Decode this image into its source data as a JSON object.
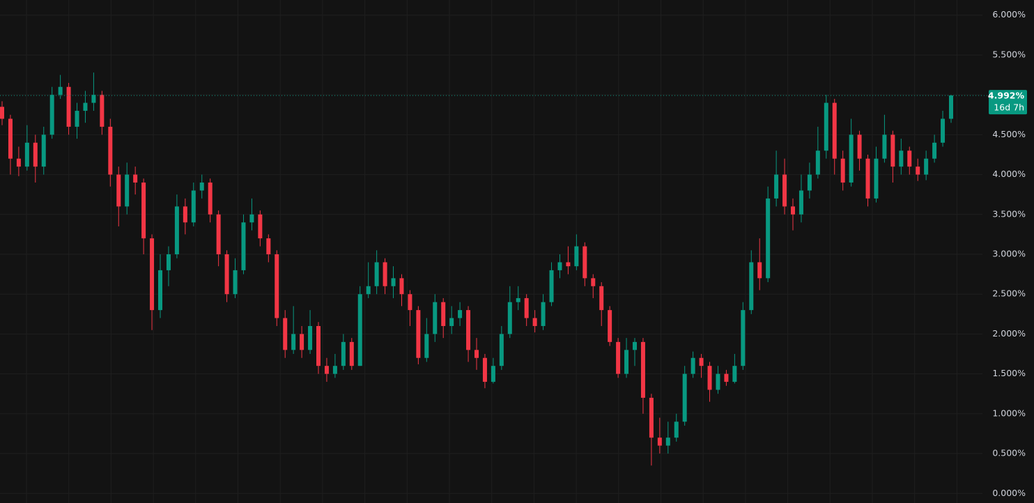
{
  "chart_data": {
    "type": "candlestick",
    "up_color": "#089981",
    "down_color": "#f23645",
    "grid": true,
    "ylim": [
      -0.12,
      6.19
    ],
    "yticks": [
      {
        "value": 0,
        "label": "0.000%"
      },
      {
        "value": 0.5,
        "label": "0.500%"
      },
      {
        "value": 1,
        "label": "1.000%"
      },
      {
        "value": 1.5,
        "label": "1.500%"
      },
      {
        "value": 2,
        "label": "2.000%"
      },
      {
        "value": 2.5,
        "label": "2.500%"
      },
      {
        "value": 3,
        "label": "3.000%"
      },
      {
        "value": 3.5,
        "label": "3.500%"
      },
      {
        "value": 4,
        "label": "4.000%"
      },
      {
        "value": 4.5,
        "label": "4.500%"
      },
      {
        "value": 5,
        "label": "5.000%"
      },
      {
        "value": 5.5,
        "label": "5.500%"
      },
      {
        "value": 6,
        "label": "6.000%"
      }
    ],
    "last_price": {
      "value": 4.992,
      "label": "4.992%"
    },
    "countdown": "16d 7h",
    "open": [
      4.85,
      4.7,
      4.2,
      4.1,
      4.4,
      4.1,
      4.5,
      5.0,
      5.1,
      4.6,
      4.8,
      4.9,
      5.0,
      4.6,
      4.0,
      3.6,
      4.0,
      3.9,
      3.2,
      2.3,
      2.8,
      3.0,
      3.6,
      3.4,
      3.8,
      3.9,
      3.5,
      3.0,
      2.5,
      2.8,
      3.4,
      3.5,
      3.2,
      3.0,
      2.2,
      1.8,
      2.0,
      1.8,
      2.1,
      1.6,
      1.5,
      1.6,
      1.9,
      1.6,
      2.5,
      2.6,
      2.9,
      2.6,
      2.7,
      2.5,
      2.3,
      1.7,
      2.0,
      2.4,
      2.1,
      2.2,
      2.3,
      1.8,
      1.7,
      1.4,
      1.6,
      2.0,
      2.4,
      2.45,
      2.2,
      2.1,
      2.4,
      2.8,
      2.9,
      2.85,
      3.1,
      2.7,
      2.6,
      2.3,
      1.9,
      1.5,
      1.8,
      1.9,
      1.2,
      0.7,
      0.6,
      0.7,
      0.9,
      1.5,
      1.7,
      1.6,
      1.3,
      1.5,
      1.4,
      1.6,
      2.3,
      2.9,
      2.7,
      3.7,
      4.0,
      3.6,
      3.5,
      3.8,
      4.0,
      4.3,
      4.9,
      4.2,
      3.9,
      4.5,
      4.2,
      3.7,
      4.2,
      4.5,
      4.1,
      4.3,
      4.1,
      4.0,
      4.2,
      4.4,
      4.7
    ],
    "high": [
      4.92,
      4.75,
      4.35,
      4.62,
      4.5,
      4.6,
      5.1,
      5.25,
      5.15,
      4.9,
      5.05,
      5.28,
      5.05,
      4.7,
      4.1,
      4.15,
      4.1,
      3.95,
      3.25,
      3.0,
      3.1,
      3.75,
      3.7,
      3.9,
      4.0,
      3.95,
      3.55,
      3.05,
      2.95,
      3.5,
      3.7,
      3.55,
      3.25,
      3.05,
      2.3,
      2.35,
      2.1,
      2.3,
      2.15,
      1.7,
      1.75,
      2.0,
      1.95,
      2.6,
      2.9,
      3.05,
      2.95,
      2.85,
      2.75,
      2.55,
      2.35,
      2.2,
      2.5,
      2.45,
      2.35,
      2.4,
      2.35,
      1.95,
      1.75,
      1.7,
      2.1,
      2.6,
      2.6,
      2.5,
      2.3,
      2.5,
      2.9,
      3.0,
      3.1,
      3.25,
      3.15,
      2.75,
      2.65,
      2.35,
      1.95,
      1.95,
      1.95,
      1.95,
      1.25,
      0.95,
      0.9,
      1.0,
      1.6,
      1.78,
      1.75,
      1.65,
      1.6,
      1.55,
      1.75,
      2.4,
      3.05,
      3.2,
      3.85,
      4.3,
      4.2,
      3.7,
      4.0,
      4.15,
      4.6,
      5.0,
      4.95,
      4.3,
      4.7,
      4.55,
      4.25,
      4.35,
      4.75,
      4.55,
      4.45,
      4.35,
      4.2,
      4.3,
      4.5,
      4.8,
      5.0
    ],
    "low": [
      4.62,
      4.0,
      3.98,
      4.05,
      3.9,
      4.0,
      4.45,
      4.95,
      4.5,
      4.45,
      4.65,
      4.8,
      4.5,
      3.85,
      3.35,
      3.5,
      3.75,
      3.0,
      2.05,
      2.2,
      2.6,
      2.95,
      3.25,
      3.35,
      3.7,
      3.4,
      2.85,
      2.4,
      2.45,
      2.75,
      3.3,
      3.1,
      2.9,
      2.1,
      1.7,
      1.75,
      1.7,
      1.75,
      1.5,
      1.4,
      1.45,
      1.55,
      1.55,
      1.6,
      2.45,
      2.5,
      2.5,
      2.45,
      2.35,
      2.1,
      1.62,
      1.65,
      1.9,
      1.95,
      2.0,
      2.1,
      1.65,
      1.55,
      1.32,
      1.38,
      1.55,
      1.95,
      2.3,
      2.1,
      2.02,
      2.05,
      2.35,
      2.7,
      2.75,
      2.8,
      2.6,
      2.45,
      2.1,
      1.85,
      1.45,
      1.45,
      1.6,
      1.0,
      0.35,
      0.5,
      0.5,
      0.65,
      0.85,
      1.45,
      1.45,
      1.15,
      1.25,
      1.35,
      1.38,
      1.55,
      2.25,
      2.55,
      2.65,
      3.6,
      3.5,
      3.3,
      3.4,
      3.7,
      3.95,
      4.2,
      4.0,
      3.8,
      3.85,
      4.05,
      3.6,
      3.65,
      4.15,
      3.9,
      4.0,
      4.0,
      3.92,
      3.93,
      4.15,
      4.35,
      4.65
    ],
    "close": [
      4.7,
      4.2,
      4.1,
      4.4,
      4.1,
      4.5,
      5.0,
      5.1,
      4.6,
      4.8,
      4.9,
      5.0,
      4.6,
      4.0,
      3.6,
      4.0,
      3.9,
      3.2,
      2.3,
      2.8,
      3.0,
      3.6,
      3.4,
      3.8,
      3.9,
      3.5,
      3.0,
      2.5,
      2.8,
      3.4,
      3.5,
      3.2,
      3.0,
      2.2,
      1.8,
      2.0,
      1.8,
      2.1,
      1.6,
      1.5,
      1.6,
      1.9,
      1.6,
      2.5,
      2.6,
      2.9,
      2.6,
      2.7,
      2.5,
      2.3,
      1.7,
      2.0,
      2.4,
      2.1,
      2.2,
      2.3,
      1.8,
      1.7,
      1.4,
      1.6,
      2.0,
      2.4,
      2.45,
      2.2,
      2.1,
      2.4,
      2.8,
      2.9,
      2.85,
      3.1,
      2.7,
      2.6,
      2.3,
      1.9,
      1.5,
      1.8,
      1.9,
      1.2,
      0.7,
      0.6,
      0.7,
      0.9,
      1.5,
      1.7,
      1.6,
      1.3,
      1.5,
      1.4,
      1.6,
      2.3,
      2.9,
      2.7,
      3.7,
      4.0,
      3.6,
      3.5,
      3.8,
      4.0,
      4.3,
      4.9,
      4.2,
      3.9,
      4.5,
      4.2,
      3.7,
      4.2,
      4.5,
      4.1,
      4.3,
      4.1,
      4.0,
      4.2,
      4.4,
      4.7,
      4.992
    ]
  }
}
